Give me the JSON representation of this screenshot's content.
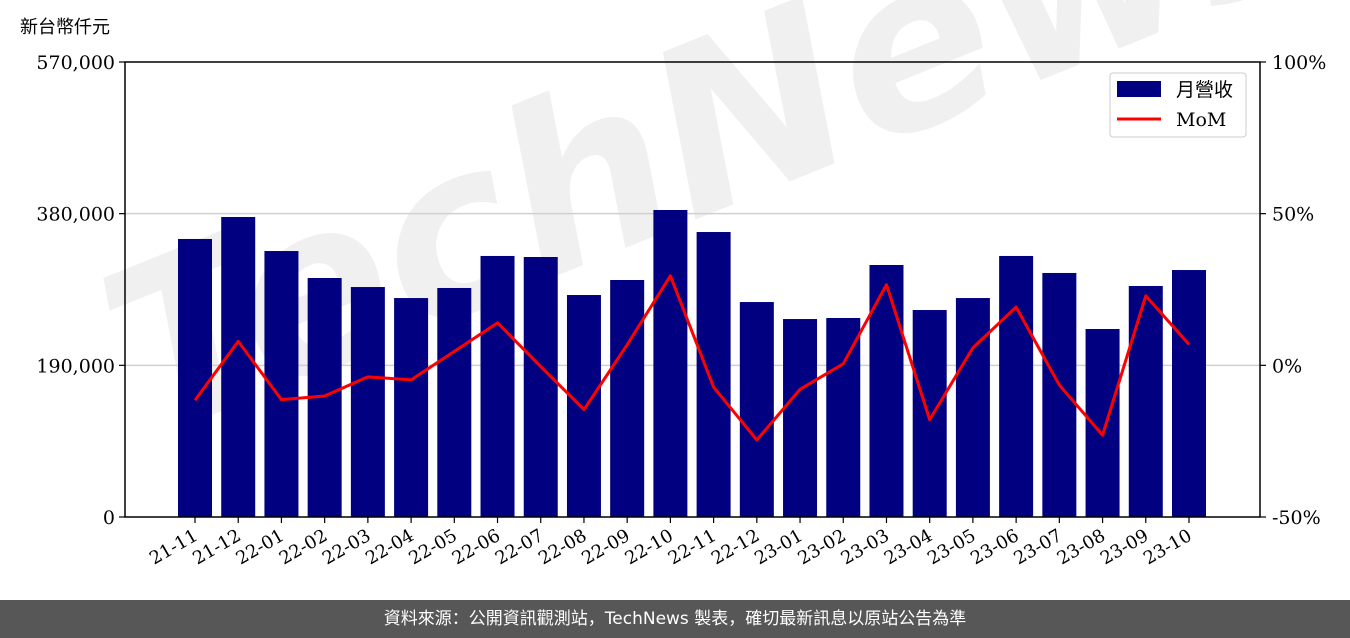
{
  "chart_data": {
    "type": "bar+line",
    "ylabel": "新台幣仟元",
    "categories": [
      "21-11",
      "21-12",
      "22-01",
      "22-02",
      "22-03",
      "22-04",
      "22-05",
      "22-06",
      "22-07",
      "22-08",
      "22-09",
      "22-10",
      "22-11",
      "22-12",
      "23-01",
      "23-02",
      "23-03",
      "23-04",
      "23-05",
      "23-06",
      "23-07",
      "23-08",
      "23-09",
      "23-10"
    ],
    "series": [
      {
        "name": "月營收",
        "type": "bar",
        "axis": "left",
        "color": "#000080",
        "values": [
          348300,
          375800,
          333200,
          299400,
          288100,
          274300,
          286900,
          327000,
          325700,
          278100,
          296900,
          384600,
          357000,
          269300,
          248000,
          249300,
          315700,
          259300,
          274300,
          327000,
          305700,
          235500,
          289400,
          309400
        ]
      },
      {
        "name": "MoM",
        "type": "line",
        "axis": "right",
        "color": "#ff0000",
        "values": [
          -11.5,
          7.9,
          -11.3,
          -10.1,
          -3.8,
          -4.8,
          4.6,
          14.0,
          -0.4,
          -14.6,
          6.8,
          29.5,
          -7.2,
          -24.6,
          -7.9,
          0.5,
          26.6,
          -17.9,
          5.8,
          19.2,
          -6.5,
          -23.0,
          22.9,
          6.9
        ]
      }
    ],
    "ylim": [
      0,
      570000
    ],
    "yticks": [
      "0",
      "190,000",
      "380,000",
      "570,000"
    ],
    "y2lim": [
      -50,
      100
    ],
    "y2ticks": [
      "-50%",
      "0%",
      "50%",
      "100%"
    ],
    "grid": "horizontal",
    "legend": "top-right"
  },
  "watermark": "TechNews",
  "footer": "資料來源：公開資訊觀測站，TechNews 製表，確切最新訊息以原站公告為準"
}
